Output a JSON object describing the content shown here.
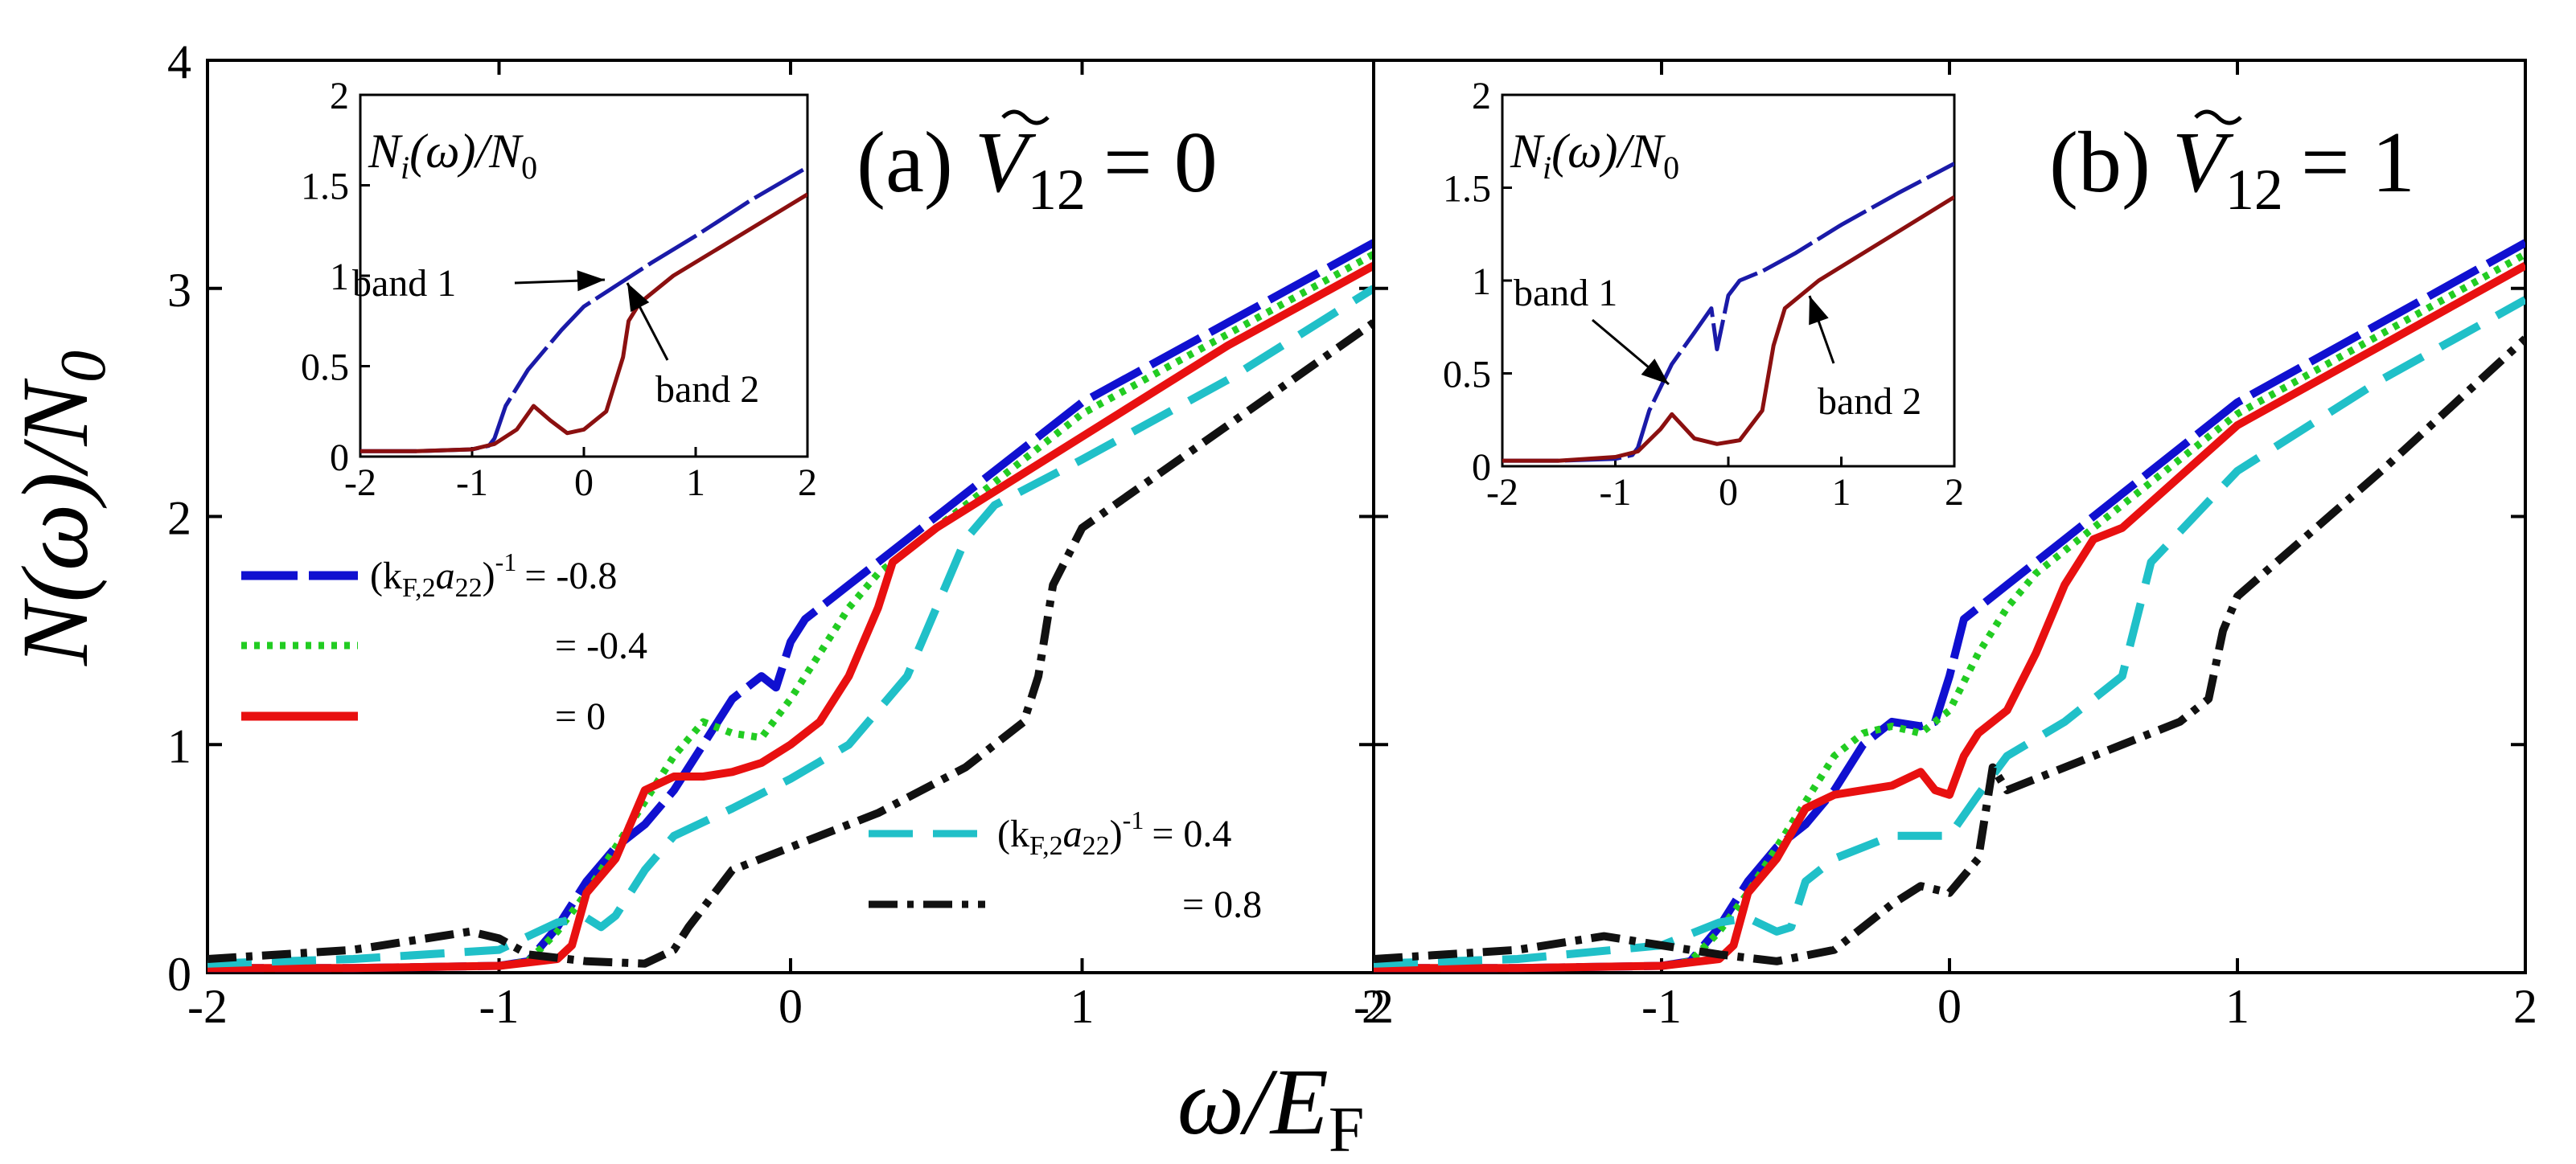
{
  "figure": {
    "xlabel": "ω/E",
    "xlabel_sub": "F",
    "ylabel": "N(ω)/N",
    "ylabel_sub": "0"
  },
  "legend": {
    "main_label": "(k",
    "main_sub": "F,2",
    "main_a": "a",
    "main_a_sub": "22",
    "main_sup": "-1",
    "entries": [
      "= -0.8",
      "= -0.4",
      "= 0",
      "= 0.4",
      "= 0.8"
    ]
  },
  "chart_data": [
    {
      "type": "line",
      "title": "(a) Ṽ12 = 0",
      "title_prefix": "(a)",
      "title_var": "V",
      "title_var_sub": "12",
      "title_value": "= 0",
      "xlabel": "ω/EF",
      "ylabel": "N(ω)/N0",
      "xlim": [
        -2,
        2
      ],
      "ylim": [
        0,
        4
      ],
      "xticks": [
        "-2",
        "-1",
        "0",
        "1",
        "2"
      ],
      "yticks": [
        "0",
        "1",
        "2",
        "3",
        "4"
      ],
      "series": [
        {
          "name": "(kF,2 a22)^-1 = -0.8",
          "color": "#1010d0",
          "dash": "70,14",
          "x": [
            -2,
            -1.5,
            -1.0,
            -0.9,
            -0.8,
            -0.7,
            -0.6,
            -0.5,
            -0.4,
            -0.3,
            -0.2,
            -0.1,
            -0.05,
            0.0,
            0.05,
            0.1,
            0.2,
            0.4,
            0.6,
            1.0,
            1.5,
            2.0
          ],
          "values": [
            0.02,
            0.02,
            0.03,
            0.05,
            0.2,
            0.4,
            0.55,
            0.65,
            0.8,
            1.0,
            1.2,
            1.3,
            1.25,
            1.45,
            1.55,
            1.6,
            1.7,
            1.9,
            2.1,
            2.5,
            2.85,
            3.2
          ]
        },
        {
          "name": "(kF,2 a22)^-1 = -0.4",
          "color": "#22cc22",
          "dash": "7,9",
          "x": [
            -2,
            -1.5,
            -1.0,
            -0.9,
            -0.8,
            -0.7,
            -0.6,
            -0.5,
            -0.4,
            -0.3,
            -0.2,
            -0.1,
            0.0,
            0.1,
            0.2,
            0.3,
            0.6,
            1.0,
            1.5,
            2.0
          ],
          "values": [
            0.02,
            0.02,
            0.03,
            0.05,
            0.18,
            0.35,
            0.55,
            0.75,
            0.95,
            1.1,
            1.05,
            1.03,
            1.2,
            1.4,
            1.6,
            1.75,
            2.05,
            2.45,
            2.8,
            3.15
          ]
        },
        {
          "name": "(kF,2 a22)^-1 = 0",
          "color": "#e81010",
          "dash": "",
          "x": [
            -2,
            -1.5,
            -1.0,
            -0.8,
            -0.75,
            -0.7,
            -0.6,
            -0.5,
            -0.4,
            -0.3,
            -0.2,
            -0.1,
            0.0,
            0.1,
            0.2,
            0.3,
            0.35,
            0.5,
            1.0,
            1.5,
            2.0
          ],
          "values": [
            0.02,
            0.02,
            0.03,
            0.06,
            0.12,
            0.35,
            0.5,
            0.8,
            0.86,
            0.86,
            0.88,
            0.92,
            1.0,
            1.1,
            1.3,
            1.6,
            1.8,
            1.95,
            2.35,
            2.75,
            3.1
          ]
        },
        {
          "name": "(kF,2 a22)^-1 = 0.4",
          "color": "#20c0c8",
          "dash": "55,25",
          "x": [
            -2,
            -1.5,
            -1.0,
            -0.8,
            -0.7,
            -0.65,
            -0.6,
            -0.5,
            -0.4,
            -0.2,
            0.0,
            0.2,
            0.4,
            0.5,
            0.6,
            0.7,
            1.0,
            1.5,
            2.0
          ],
          "values": [
            0.04,
            0.06,
            0.1,
            0.22,
            0.24,
            0.2,
            0.25,
            0.45,
            0.6,
            0.72,
            0.85,
            1.0,
            1.3,
            1.6,
            1.9,
            2.05,
            2.25,
            2.6,
            3.0
          ]
        },
        {
          "name": "(kF,2 a22)^-1 = 0.8",
          "color": "#111111",
          "dash": "36,12,8,12",
          "x": [
            -2,
            -1.5,
            -1.1,
            -1.0,
            -0.9,
            -0.7,
            -0.5,
            -0.4,
            -0.35,
            -0.2,
            0.0,
            0.3,
            0.6,
            0.8,
            0.85,
            0.9,
            1.0,
            1.5,
            2.0
          ],
          "values": [
            0.06,
            0.1,
            0.18,
            0.15,
            0.08,
            0.05,
            0.04,
            0.1,
            0.2,
            0.45,
            0.55,
            0.7,
            0.9,
            1.1,
            1.3,
            1.7,
            1.95,
            2.4,
            2.85
          ]
        }
      ],
      "inset": {
        "title": "Ni(ω)/N0",
        "title_N": "N",
        "title_i": "i",
        "title_mid": "(ω)/N",
        "title_0": "0",
        "xlim": [
          -2,
          2
        ],
        "ylim": [
          0,
          2
        ],
        "xticks": [
          "-2",
          "-1",
          "0",
          "1",
          "2"
        ],
        "yticks": [
          "0",
          "0.5",
          "1",
          "1.5",
          "2"
        ],
        "annotations": [
          "band 1",
          "band 2"
        ],
        "series": [
          {
            "name": "band 1",
            "color": "#1a1aa8",
            "dash": "70,8",
            "x": [
              -2,
              -1.5,
              -1.0,
              -0.85,
              -0.8,
              -0.7,
              -0.5,
              -0.2,
              0.0,
              0.3,
              0.6,
              1.0,
              1.5,
              2.0
            ],
            "values": [
              0.03,
              0.03,
              0.04,
              0.06,
              0.1,
              0.28,
              0.48,
              0.7,
              0.83,
              0.95,
              1.07,
              1.22,
              1.42,
              1.6
            ]
          },
          {
            "name": "band 2",
            "color": "#8b1010",
            "dash": "",
            "x": [
              -2,
              -1.5,
              -1.0,
              -0.8,
              -0.6,
              -0.45,
              -0.3,
              -0.15,
              0.0,
              0.2,
              0.35,
              0.4,
              0.5,
              0.8,
              1.2,
              1.6,
              2.0
            ],
            "values": [
              0.03,
              0.03,
              0.04,
              0.07,
              0.15,
              0.28,
              0.2,
              0.13,
              0.15,
              0.25,
              0.55,
              0.75,
              0.85,
              1.0,
              1.15,
              1.3,
              1.45
            ]
          }
        ]
      }
    },
    {
      "type": "line",
      "title": "(b) Ṽ12 = 1",
      "title_prefix": "(b)",
      "title_var": "V",
      "title_var_sub": "12",
      "title_value": "= 1",
      "xlabel": "ω/EF",
      "ylabel": "N(ω)/N0",
      "xlim": [
        -2,
        2
      ],
      "ylim": [
        0,
        4
      ],
      "xticks": [
        "-2",
        "-1",
        "0",
        "1",
        "2"
      ],
      "yticks": [
        "0",
        "1",
        "2",
        "3",
        "4"
      ],
      "series": [
        {
          "name": "(kF,2 a22)^-1 = -0.8",
          "color": "#1010d0",
          "dash": "70,14",
          "x": [
            -2,
            -1.5,
            -1.0,
            -0.9,
            -0.8,
            -0.7,
            -0.6,
            -0.5,
            -0.4,
            -0.3,
            -0.2,
            -0.1,
            -0.05,
            0.0,
            0.05,
            0.1,
            0.2,
            0.4,
            0.6,
            1.0,
            1.5,
            2.0
          ],
          "values": [
            0.02,
            0.02,
            0.03,
            0.05,
            0.2,
            0.4,
            0.55,
            0.65,
            0.8,
            1.0,
            1.1,
            1.08,
            1.1,
            1.3,
            1.55,
            1.6,
            1.7,
            1.9,
            2.1,
            2.5,
            2.85,
            3.2
          ]
        },
        {
          "name": "(kF,2 a22)^-1 = -0.4",
          "color": "#22cc22",
          "dash": "7,9",
          "x": [
            -2,
            -1.5,
            -1.0,
            -0.9,
            -0.8,
            -0.7,
            -0.6,
            -0.5,
            -0.4,
            -0.3,
            -0.2,
            -0.1,
            0.0,
            0.1,
            0.2,
            0.3,
            0.6,
            1.0,
            1.5,
            2.0
          ],
          "values": [
            0.02,
            0.02,
            0.03,
            0.05,
            0.18,
            0.35,
            0.55,
            0.75,
            0.95,
            1.05,
            1.08,
            1.05,
            1.15,
            1.4,
            1.6,
            1.75,
            2.05,
            2.45,
            2.8,
            3.15
          ]
        },
        {
          "name": "(kF,2 a22)^-1 = 0",
          "color": "#e81010",
          "dash": "",
          "x": [
            -2,
            -1.5,
            -1.0,
            -0.8,
            -0.75,
            -0.7,
            -0.6,
            -0.5,
            -0.4,
            -0.2,
            -0.1,
            -0.05,
            0.0,
            0.05,
            0.1,
            0.2,
            0.3,
            0.4,
            0.5,
            0.6,
            1.0,
            1.5,
            2.0
          ],
          "values": [
            0.02,
            0.02,
            0.03,
            0.06,
            0.12,
            0.35,
            0.5,
            0.72,
            0.78,
            0.82,
            0.88,
            0.8,
            0.78,
            0.95,
            1.05,
            1.15,
            1.4,
            1.7,
            1.9,
            1.95,
            2.4,
            2.75,
            3.1
          ]
        },
        {
          "name": "(kF,2 a22)^-1 = 0.4",
          "color": "#20c0c8",
          "dash": "55,25",
          "x": [
            -2,
            -1.5,
            -1.0,
            -0.8,
            -0.7,
            -0.6,
            -0.55,
            -0.5,
            -0.4,
            -0.2,
            -0.05,
            0.0,
            0.1,
            0.2,
            0.4,
            0.6,
            0.7,
            1.0,
            1.5,
            2.0
          ],
          "values": [
            0.04,
            0.06,
            0.12,
            0.22,
            0.24,
            0.18,
            0.2,
            0.4,
            0.5,
            0.6,
            0.6,
            0.6,
            0.78,
            0.95,
            1.1,
            1.3,
            1.8,
            2.2,
            2.6,
            2.95
          ]
        },
        {
          "name": "(kF,2 a22)^-1 = 0.8",
          "color": "#111111",
          "dash": "36,12,8,12",
          "x": [
            -2,
            -1.5,
            -1.2,
            -1.0,
            -0.8,
            -0.6,
            -0.4,
            -0.2,
            -0.1,
            0.0,
            0.1,
            0.15,
            0.2,
            0.4,
            0.6,
            0.8,
            0.9,
            0.95,
            1.0,
            1.5,
            2.0
          ],
          "values": [
            0.06,
            0.1,
            0.16,
            0.12,
            0.08,
            0.05,
            0.1,
            0.3,
            0.38,
            0.35,
            0.5,
            0.9,
            0.8,
            0.9,
            1.0,
            1.1,
            1.2,
            1.5,
            1.65,
            2.2,
            2.78
          ]
        }
      ],
      "inset": {
        "title": "Ni(ω)/N0",
        "title_N": "N",
        "title_i": "i",
        "title_mid": "(ω)/N",
        "title_0": "0",
        "xlim": [
          -2,
          2
        ],
        "ylim": [
          0,
          2
        ],
        "xticks": [
          "-2",
          "-1",
          "0",
          "1",
          "2"
        ],
        "yticks": [
          "0",
          "0.5",
          "1",
          "1.5",
          "2"
        ],
        "annotations": [
          "band 1",
          "band 2"
        ],
        "series": [
          {
            "name": "band 1",
            "color": "#1a1aa8",
            "dash": "70,8",
            "x": [
              -2,
              -1.5,
              -1.0,
              -0.85,
              -0.8,
              -0.7,
              -0.5,
              -0.3,
              -0.15,
              -0.1,
              0.0,
              0.1,
              0.3,
              0.6,
              1.0,
              1.5,
              2.0
            ],
            "values": [
              0.03,
              0.03,
              0.04,
              0.06,
              0.1,
              0.3,
              0.55,
              0.72,
              0.85,
              0.63,
              0.92,
              1.0,
              1.05,
              1.15,
              1.3,
              1.47,
              1.63
            ]
          },
          {
            "name": "band 2",
            "color": "#8b1010",
            "dash": "",
            "x": [
              -2,
              -1.5,
              -1.0,
              -0.8,
              -0.6,
              -0.5,
              -0.3,
              -0.1,
              0.1,
              0.3,
              0.4,
              0.5,
              0.8,
              1.2,
              1.6,
              2.0
            ],
            "values": [
              0.03,
              0.03,
              0.05,
              0.08,
              0.2,
              0.28,
              0.15,
              0.12,
              0.14,
              0.3,
              0.65,
              0.85,
              1.0,
              1.15,
              1.3,
              1.45
            ]
          }
        ]
      }
    }
  ]
}
